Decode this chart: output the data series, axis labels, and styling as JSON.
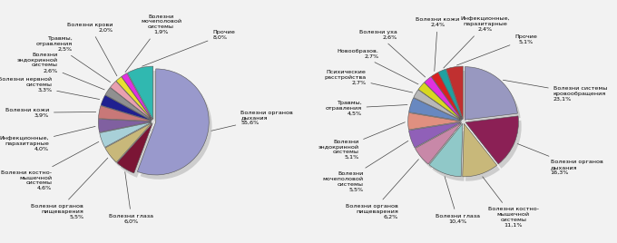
{
  "chart1": {
    "values": [
      55.6,
      6.0,
      5.5,
      4.6,
      4.0,
      3.9,
      3.3,
      2.6,
      2.5,
      2.0,
      1.9,
      8.0
    ],
    "colors": [
      "#9999CC",
      "#7B1535",
      "#C8B87A",
      "#A8D0D8",
      "#8060A0",
      "#C87878",
      "#202090",
      "#909090",
      "#E8A0B0",
      "#E8E030",
      "#E030E0",
      "#30B8B0"
    ],
    "labels": [
      "Болезни органов\nдыхания\n55,6%",
      "Болезни глаза\n6,0%",
      "Болезни органов\nпищеварения\n5,5%",
      "Болезни костно-\nмышечной\nсистемы\n4,6%",
      "Инфекционные,\nпаразитарные\n4,0%",
      "Болезни кожи\n3,9%",
      "Болезни нервной\nсистемы\n3,3%",
      "Болезни\nэндокринной\nсистемы\n2,6%",
      "Травмы,\nотравления\n2,5%",
      "Болезни крови\n2,0%",
      "Болезни\nмочеполовой\nсистемы\n1,9%",
      "Прочие\n8,0%"
    ],
    "label_pos": [
      [
        1.18,
        0.05,
        "left"
      ],
      [
        -0.3,
        -1.32,
        "center"
      ],
      [
        -0.95,
        -1.22,
        "right"
      ],
      [
        -1.38,
        -0.8,
        "right"
      ],
      [
        -1.42,
        -0.3,
        "right"
      ],
      [
        -1.42,
        0.12,
        "right"
      ],
      [
        -1.38,
        0.5,
        "right"
      ],
      [
        -1.3,
        0.8,
        "right"
      ],
      [
        -1.1,
        1.05,
        "right"
      ],
      [
        -0.55,
        1.28,
        "right"
      ],
      [
        0.1,
        1.32,
        "center"
      ],
      [
        0.8,
        1.18,
        "left"
      ]
    ],
    "startangle": 90,
    "explode": 0.03
  },
  "chart2": {
    "values": [
      23.1,
      16.3,
      11.1,
      10.4,
      6.2,
      5.5,
      5.1,
      4.5,
      2.7,
      2.7,
      2.6,
      2.4,
      2.4,
      5.1
    ],
    "colors": [
      "#9898C0",
      "#8B2055",
      "#C8B87A",
      "#90C8C8",
      "#C888A8",
      "#9060B8",
      "#E09080",
      "#6888C0",
      "#B8B8B8",
      "#D8D820",
      "#E030E0",
      "#D82020",
      "#20A0A0",
      "#C03030"
    ],
    "labels": [
      "Болезни системы\nкровообращения\n23,1%",
      "Болезни органов\nдыхания\n16,3%",
      "Болезни костно-\nмышечной\nсистемы\n11,1%",
      "Болезни глаза\n10,4%",
      "Болезни органов\nпищеварения\n6,2%",
      "Болезни\nмочеполовой\nсистемы\n5,5%",
      "Болезни\nэндокринной\nсистемы\n5,1%",
      "Травмы,\nотравления\n4,5%",
      "Психические\nрасстройства\n2,7%",
      "Новообразов.\n2,7%",
      "Болезни уха\n2,6%",
      "Болезни кожи\n2,4%",
      "Инфекционные,\nпаразитарные\n2,4%",
      "Прочие\n5,1%"
    ],
    "label_pos": [
      [
        1.22,
        0.38,
        "left"
      ],
      [
        1.18,
        -0.62,
        "left"
      ],
      [
        0.68,
        -1.3,
        "center"
      ],
      [
        -0.08,
        -1.32,
        "center"
      ],
      [
        -0.88,
        -1.22,
        "right"
      ],
      [
        -1.35,
        -0.82,
        "right"
      ],
      [
        -1.42,
        -0.38,
        "right"
      ],
      [
        -1.38,
        0.18,
        "right"
      ],
      [
        -1.32,
        0.6,
        "right"
      ],
      [
        -1.15,
        0.92,
        "right"
      ],
      [
        -0.9,
        1.18,
        "right"
      ],
      [
        -0.35,
        1.35,
        "center"
      ],
      [
        0.3,
        1.32,
        "center"
      ],
      [
        0.85,
        1.12,
        "center"
      ]
    ],
    "startangle": 90,
    "explode": 0.03
  },
  "bg_color": "#F2F2F2",
  "font_size": 4.6,
  "shadow_color": "#888888",
  "edge_color": "#555555",
  "edge_width": 0.4
}
